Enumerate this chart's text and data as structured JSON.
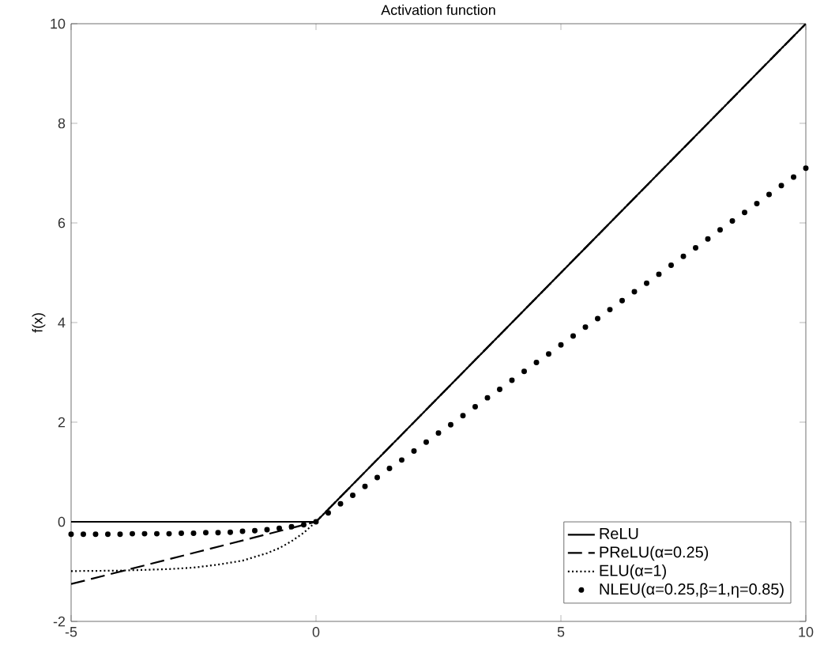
{
  "chart_data": {
    "type": "line",
    "title": "Activation function",
    "ylabel": "f(x)",
    "xlim": [
      -5,
      10
    ],
    "ylim": [
      -2,
      10
    ],
    "xticks": [
      -5,
      0,
      5,
      10
    ],
    "yticks": [
      -2,
      0,
      2,
      4,
      6,
      8,
      10
    ],
    "legend": "bottom right",
    "series": [
      {
        "name": "ReLU",
        "color": "#000000",
        "line_style": "solid",
        "x": [
          -5,
          0,
          10
        ],
        "values": [
          0,
          0,
          10
        ]
      },
      {
        "name": "PReLU(α=0.25)",
        "color": "#000000",
        "line_style": "dashed",
        "x": [
          -5,
          0,
          10
        ],
        "values": [
          -1.25,
          0,
          10
        ]
      },
      {
        "name": "ELU(α=1)",
        "color": "#000000",
        "line_style": "dotted",
        "x": [
          -5,
          -4,
          -3,
          -2.5,
          -2,
          -1.5,
          -1,
          -0.75,
          -0.5,
          -0.25,
          0,
          10
        ],
        "values": [
          -0.99,
          -0.98,
          -0.95,
          -0.92,
          -0.86,
          -0.78,
          -0.63,
          -0.53,
          -0.39,
          -0.22,
          0,
          10
        ]
      },
      {
        "name": "NLEU(α=0.25,β=1,η=0.85)",
        "color": "#000000",
        "type": "scatter",
        "marker": "circle",
        "x": [
          -5,
          -4.75,
          -4.5,
          -4.25,
          -4,
          -3.75,
          -3.5,
          -3.25,
          -3,
          -2.75,
          -2.5,
          -2.25,
          -2,
          -1.75,
          -1.5,
          -1.25,
          -1,
          -0.75,
          -0.5,
          -0.25,
          0,
          0.25,
          0.5,
          0.75,
          1,
          1.25,
          1.5,
          1.75,
          2,
          2.25,
          2.5,
          2.75,
          3,
          3.25,
          3.5,
          3.75,
          4,
          4.25,
          4.5,
          4.75,
          5,
          5.25,
          5.5,
          5.75,
          6,
          6.25,
          6.5,
          6.75,
          7,
          7.25,
          7.5,
          7.75,
          8,
          8.25,
          8.5,
          8.75,
          9,
          9.25,
          9.5,
          9.75,
          10
        ],
        "values": [
          -0.25,
          -0.25,
          -0.25,
          -0.25,
          -0.25,
          -0.24,
          -0.24,
          -0.24,
          -0.24,
          -0.23,
          -0.23,
          -0.22,
          -0.22,
          -0.21,
          -0.19,
          -0.18,
          -0.16,
          -0.13,
          -0.1,
          -0.06,
          0,
          0.18,
          0.36,
          0.53,
          0.71,
          0.89,
          1.07,
          1.24,
          1.42,
          1.6,
          1.78,
          1.95,
          2.13,
          2.31,
          2.49,
          2.66,
          2.84,
          3.02,
          3.2,
          3.37,
          3.55,
          3.73,
          3.91,
          4.08,
          4.26,
          4.44,
          4.62,
          4.79,
          4.97,
          5.15,
          5.33,
          5.5,
          5.68,
          5.86,
          6.04,
          6.21,
          6.39,
          6.57,
          6.75,
          6.92,
          7.1
        ]
      }
    ]
  }
}
